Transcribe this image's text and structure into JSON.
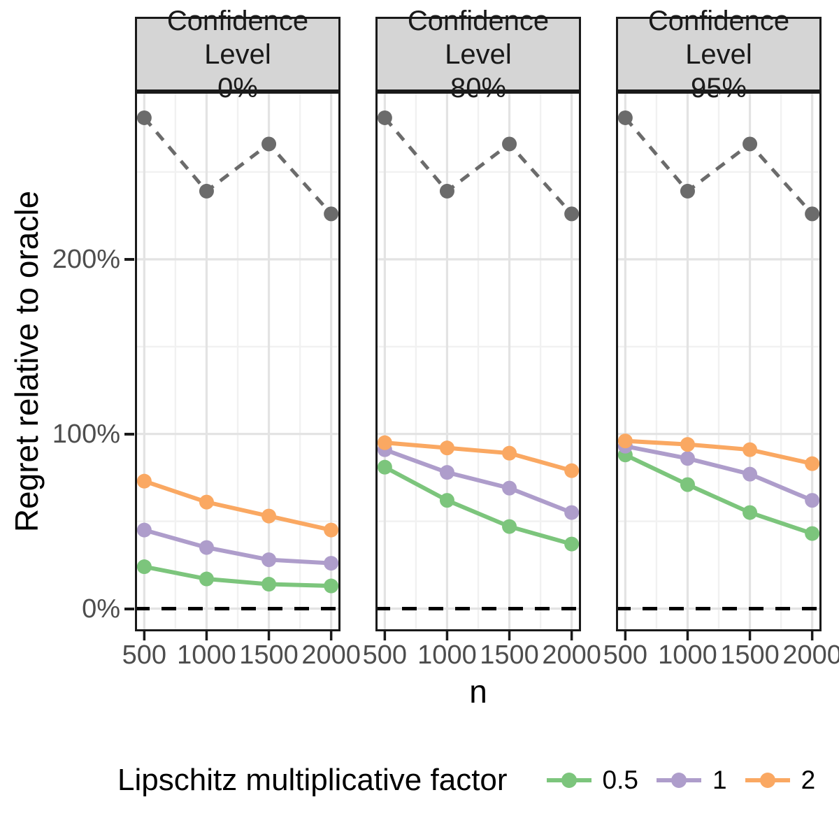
{
  "chart_data": {
    "type": "line",
    "title": "",
    "xlabel": "n",
    "ylabel": "Regret relative to oracle",
    "facet_variable": "Confidence Level",
    "x": [
      500,
      1000,
      1500,
      2000
    ],
    "x_tick_labels": [
      "500",
      "1000",
      "1500",
      "2000"
    ],
    "x_minor_gridlines": [
      750,
      1250,
      1750
    ],
    "y_ticks": [
      {
        "value": 0,
        "label": "0%"
      },
      {
        "value": 100,
        "label": "100%"
      },
      {
        "value": 200,
        "label": "200%"
      }
    ],
    "y_minor_gridlines": [
      50,
      150,
      250
    ],
    "xlim": [
      425,
      2075
    ],
    "ylim": [
      -13,
      296
    ],
    "grid": "major and minor, light gray on white, black panel border",
    "reference_line": {
      "value": 0,
      "style": "dashed",
      "color": "#000000"
    },
    "legend": {
      "title": "Lipschitz multiplicative factor",
      "position": "bottom",
      "items": [
        {
          "label": "0.5",
          "color": "#7CC57C"
        },
        {
          "label": "1",
          "color": "#AE9DCB"
        },
        {
          "label": "2",
          "color": "#FAA862"
        }
      ]
    },
    "panels": [
      {
        "strip_line1": "Confidence Level",
        "strip_line2": "0%",
        "series": [
          {
            "name": "unlabeled-reference",
            "color": "#6B6B6B",
            "dashed": true,
            "values": [
              281,
              239,
              266,
              226
            ]
          },
          {
            "name": "0.5",
            "color": "#7CC57C",
            "dashed": false,
            "values": [
              24,
              17,
              14,
              13
            ]
          },
          {
            "name": "1",
            "color": "#AE9DCB",
            "dashed": false,
            "values": [
              45,
              35,
              28,
              26
            ]
          },
          {
            "name": "2",
            "color": "#FAA862",
            "dashed": false,
            "values": [
              73,
              61,
              53,
              45
            ]
          }
        ]
      },
      {
        "strip_line1": "Confidence Level",
        "strip_line2": "80%",
        "series": [
          {
            "name": "unlabeled-reference",
            "color": "#6B6B6B",
            "dashed": true,
            "values": [
              281,
              239,
              266,
              226
            ]
          },
          {
            "name": "0.5",
            "color": "#7CC57C",
            "dashed": false,
            "values": [
              81,
              62,
              47,
              37
            ]
          },
          {
            "name": "1",
            "color": "#AE9DCB",
            "dashed": false,
            "values": [
              91,
              78,
              69,
              55
            ]
          },
          {
            "name": "2",
            "color": "#FAA862",
            "dashed": false,
            "values": [
              95,
              92,
              89,
              79
            ]
          }
        ]
      },
      {
        "strip_line1": "Confidence Level",
        "strip_line2": "95%",
        "series": [
          {
            "name": "unlabeled-reference",
            "color": "#6B6B6B",
            "dashed": true,
            "values": [
              281,
              239,
              266,
              226
            ]
          },
          {
            "name": "0.5",
            "color": "#7CC57C",
            "dashed": false,
            "values": [
              88,
              71,
              55,
              43
            ]
          },
          {
            "name": "1",
            "color": "#AE9DCB",
            "dashed": false,
            "values": [
              93,
              86,
              77,
              62
            ]
          },
          {
            "name": "2",
            "color": "#FAA862",
            "dashed": false,
            "values": [
              96,
              94,
              91,
              83
            ]
          }
        ]
      }
    ],
    "colors": {
      "grid_major": "#E3E3E3",
      "grid_minor": "#F1F1F1",
      "strip_background": "#D5D5D5",
      "panel_border": "#1A1A1A",
      "axis_text": "#4D4D4D"
    }
  }
}
